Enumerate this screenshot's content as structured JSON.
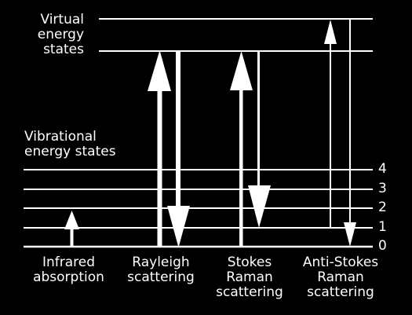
{
  "labels": {
    "virtual_states": [
      "Virtual",
      "energy",
      "states"
    ],
    "vibrational_states": [
      "Vibrational",
      "energy states"
    ],
    "levels": [
      "4",
      "3",
      "2",
      "1",
      "0"
    ],
    "processes": {
      "infrared": [
        "Infrared",
        "absorption"
      ],
      "rayleigh": [
        "Rayleigh",
        "scattering"
      ],
      "stokes": [
        "Stokes",
        "Raman",
        "scattering"
      ],
      "anti_stokes": [
        "Anti-Stokes",
        "Raman",
        "scattering"
      ]
    }
  },
  "colors": {
    "background": "#000000",
    "foreground": "#ffffff"
  }
}
